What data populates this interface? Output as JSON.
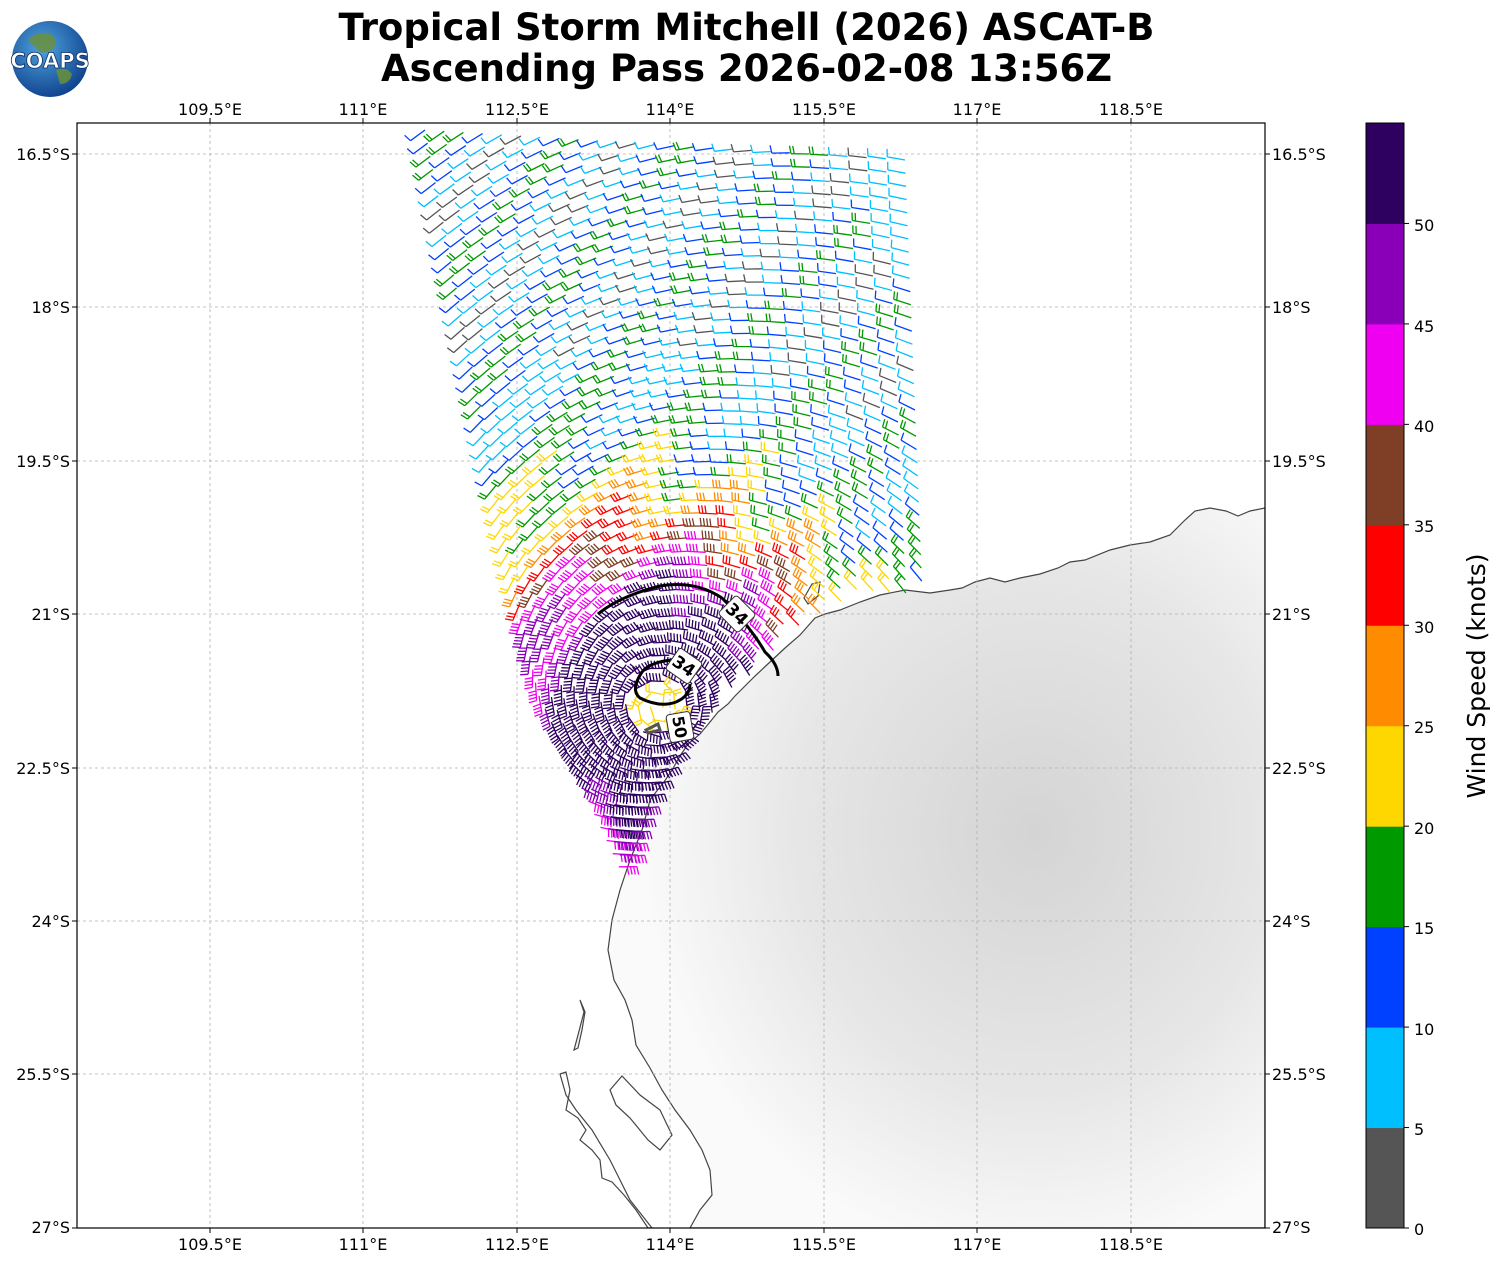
{
  "title_line1": "Tropical Storm Mitchell (2026) ASCAT-B",
  "title_line2": "Ascending Pass 2026-02-08 13:56Z",
  "logo_text": "COAPS",
  "lon_ticks": [
    "109.5°E",
    "111°E",
    "112.5°E",
    "114°E",
    "115.5°E",
    "117°E",
    "118.5°E"
  ],
  "lat_ticks": [
    "16.5°S",
    "18°S",
    "19.5°S",
    "21°S",
    "22.5°S",
    "24°S",
    "25.5°S",
    "27°S"
  ],
  "contour_labels": [
    "34",
    "34",
    "50"
  ],
  "colorbar": {
    "label": "Wind Speed (knots)",
    "tick_labels": [
      "0",
      "5",
      "10",
      "15",
      "20",
      "25",
      "30",
      "35",
      "40",
      "45",
      "50"
    ],
    "bins": [
      {
        "min": 0,
        "max": 5,
        "color": "#555555"
      },
      {
        "min": 5,
        "max": 10,
        "color": "#00bfff"
      },
      {
        "min": 10,
        "max": 15,
        "color": "#0040ff"
      },
      {
        "min": 15,
        "max": 20,
        "color": "#009900"
      },
      {
        "min": 20,
        "max": 25,
        "color": "#ffd700"
      },
      {
        "min": 25,
        "max": 30,
        "color": "#ff8c00"
      },
      {
        "min": 30,
        "max": 35,
        "color": "#ff0000"
      },
      {
        "min": 35,
        "max": 40,
        "color": "#7f3f27"
      },
      {
        "min": 40,
        "max": 45,
        "color": "#f000f0"
      },
      {
        "min": 45,
        "max": 50,
        "color": "#8a00b8"
      },
      {
        "min": 50,
        "max": 55,
        "color": "#2e0060"
      }
    ]
  },
  "chart_data": {
    "type": "map",
    "projection": "lat-lon",
    "lon_range": [
      108.2,
      119.85
    ],
    "lat_range": [
      -27,
      -16.2
    ],
    "storm_center": {
      "lon": 113.9,
      "lat": -21.9
    },
    "wind_contours_kt": [
      34,
      50
    ],
    "grid": true
  }
}
